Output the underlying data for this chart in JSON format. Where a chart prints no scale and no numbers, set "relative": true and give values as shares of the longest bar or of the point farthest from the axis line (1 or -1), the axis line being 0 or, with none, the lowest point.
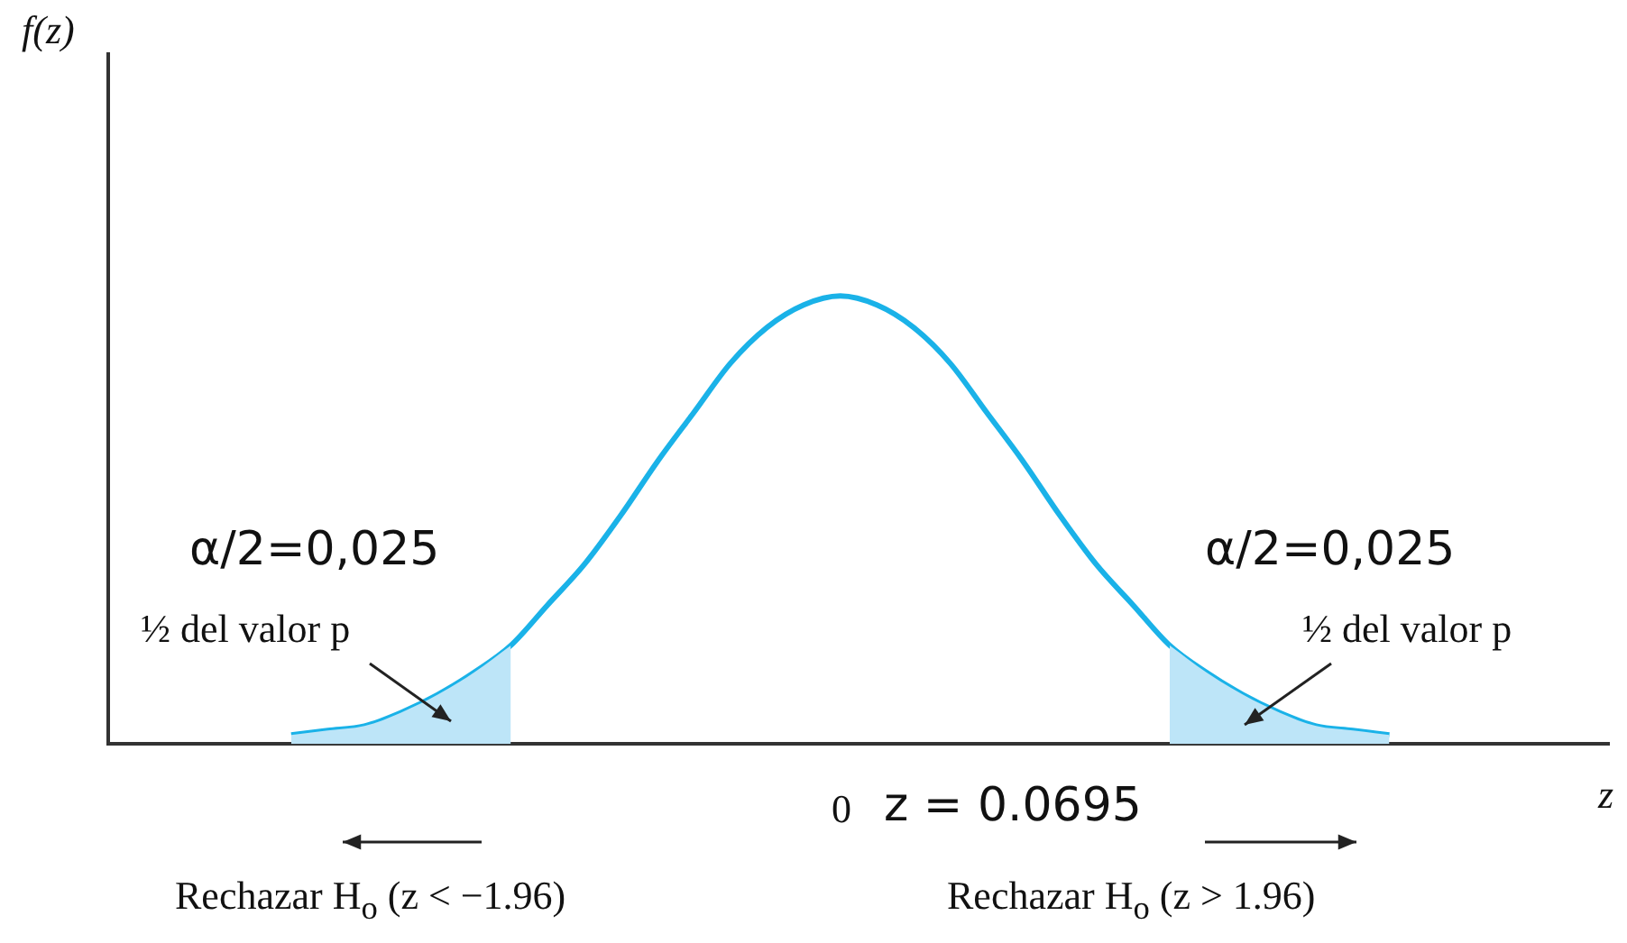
{
  "chart_data": {
    "type": "line",
    "relative": true,
    "xlabel": "z",
    "tick_labels": "x",
    "categories": [
      null,
      null,
      null,
      null,
      null,
      null,
      null,
      null,
      null,
      null,
      null,
      null,
      null,
      null,
      null,
      null,
      null,
      null,
      null,
      null,
      null,
      null,
      null,
      null,
      null,
      null,
      null,
      null,
      null,
      null,
      null,
      null,
      null,
      null,
      null,
      null,
      null,
      null,
      null,
      null,
      null,
      null
    ],
    "series": [
      {
        "type": "area",
        "color": "#bde5f8",
        "values": [
          null,
          null,
          null,
          null,
          null,
          0.02,
          0.03,
          0.04,
          0.07,
          0.11,
          0.16,
          0.22,
          null,
          null,
          null,
          null,
          null,
          null,
          null,
          null,
          null,
          null,
          null,
          null,
          null,
          null,
          null,
          null,
          null,
          null,
          null,
          null,
          null,
          null,
          null,
          null,
          null,
          null,
          null,
          null,
          null,
          null
        ]
      },
      {
        "type": "area",
        "color": "#bde5f8",
        "values": [
          null,
          null,
          null,
          null,
          null,
          null,
          null,
          null,
          null,
          null,
          null,
          null,
          null,
          null,
          null,
          null,
          null,
          null,
          null,
          null,
          null,
          null,
          null,
          null,
          null,
          null,
          null,
          null,
          null,
          0.22,
          0.16,
          0.11,
          0.07,
          0.04,
          0.03,
          0.02,
          null,
          null,
          null,
          null,
          null,
          null
        ]
      },
      {
        "type": "line",
        "color": "#1ab2e8",
        "values": [
          null,
          null,
          null,
          null,
          null,
          0.02,
          0.03,
          0.04,
          0.07,
          0.11,
          0.16,
          0.22,
          0.31,
          0.4,
          0.51,
          0.63,
          0.74,
          0.85,
          0.93,
          0.98,
          1,
          0.98,
          0.93,
          0.85,
          0.74,
          0.63,
          0.51,
          0.4,
          0.31,
          0.22,
          0.16,
          0.11,
          0.07,
          0.04,
          0.03,
          0.02,
          null,
          null,
          null,
          null,
          null,
          null
        ]
      }
    ],
    "annotations": [
      "α/2=0,025",
      "½ del valor p",
      "α/2=0,025",
      "½ del valor p",
      "z = 0.0695",
      "Rechazar H$_{o}$ (z < −1.96)",
      "Rechazar H$_{o}$ (z > 1.96)",
      "0",
      "f(z)"
    ]
  }
}
